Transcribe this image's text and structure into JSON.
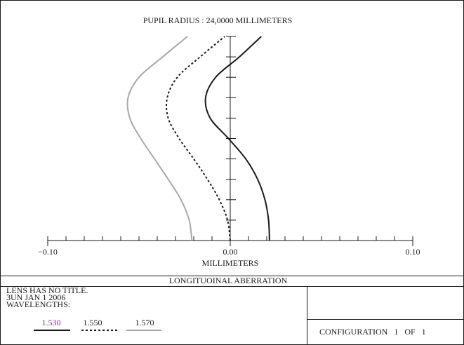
{
  "chart_data": {
    "type": "line",
    "title": "PUPIL RADIUS : 24,0000 MILLIMETERS",
    "xlabel": "MILLIMETERS",
    "xlim": [
      -0.1,
      0.1
    ],
    "xticks": [
      {
        "value": -0.1,
        "label": "−0.10"
      },
      {
        "value": 0,
        "label": "0.00"
      },
      {
        "value": 0.1,
        "label": "0.10"
      }
    ],
    "xticks_minor": [
      -0.09,
      -0.08,
      -0.07,
      -0.06,
      -0.05,
      -0.04,
      -0.03,
      -0.02,
      -0.01,
      0.01,
      0.02,
      0.03,
      0.04,
      0.05,
      0.06,
      0.07,
      0.08,
      0.09
    ],
    "ylim": [
      0,
      1
    ],
    "yticks": [
      0.1,
      0.2,
      0.3,
      0.4,
      0.5,
      0.6,
      0.7,
      0.8,
      0.9,
      1.0
    ],
    "series": [
      {
        "name": "1.530",
        "color": "#1a1a1a",
        "label_color": "#7b2d8e",
        "dash": "none",
        "x": [
          0.0215,
          0.021,
          0.019,
          0.015,
          0.0085,
          -0.001,
          -0.011,
          -0.0135,
          -0.008,
          0.005,
          0.017
        ],
        "y": [
          0,
          0.1,
          0.2,
          0.3,
          0.4,
          0.5,
          0.6,
          0.7,
          0.8,
          0.9,
          1.0
        ]
      },
      {
        "name": "1.550",
        "color": "#1a1a1a",
        "label_color": "#1a1a1a",
        "dash": "3 3",
        "x": [
          0.0,
          -0.0015,
          -0.006,
          -0.0125,
          -0.02,
          -0.028,
          -0.034,
          -0.0345,
          -0.029,
          -0.0165,
          -0.003
        ],
        "y": [
          0,
          0.1,
          0.2,
          0.3,
          0.4,
          0.5,
          0.6,
          0.7,
          0.8,
          0.9,
          1.0
        ]
      },
      {
        "name": "1.570",
        "color": "#a8a8a8",
        "label_color": "#1a1a1a",
        "dash": "none",
        "x": [
          -0.021,
          -0.0225,
          -0.027,
          -0.034,
          -0.0415,
          -0.049,
          -0.055,
          -0.056,
          -0.05,
          -0.037,
          -0.0235
        ],
        "y": [
          0,
          0.1,
          0.2,
          0.3,
          0.4,
          0.5,
          0.6,
          0.7,
          0.8,
          0.9,
          1.0
        ]
      }
    ]
  },
  "footer": {
    "plot_name": "LONGITUOINAL ABERRATION",
    "lines": [
      "LENS HAS NO TITLE.",
      "3UN JAN 1 2006",
      "WAVELENGTHS:"
    ],
    "configuration": "CONFIGURATION   1   OF   1"
  }
}
